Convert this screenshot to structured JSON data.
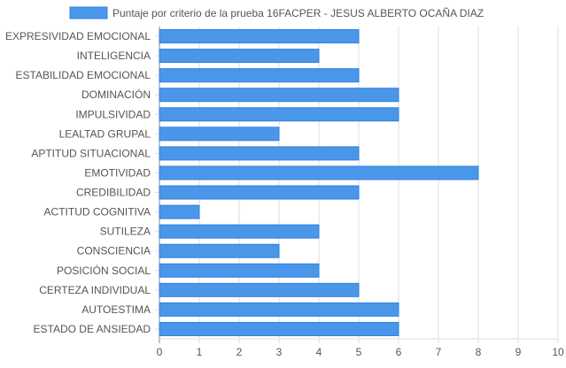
{
  "chart_data": {
    "type": "bar",
    "orientation": "horizontal",
    "legend_position": "top",
    "grid": true,
    "colors": {
      "bar_fill": "#4a97ea",
      "bar_stroke": "#2f7fe0",
      "grid": "#dddddd",
      "axis_text": "#555555"
    },
    "xlim": [
      0,
      10
    ],
    "x_ticks": [
      "0",
      "1",
      "2",
      "3",
      "4",
      "5",
      "6",
      "7",
      "8",
      "9",
      "10"
    ],
    "categories": [
      "EXPRESIVIDAD EMOCIONAL",
      "INTELIGENCIA",
      "ESTABILIDAD EMOCIONAL",
      "DOMINACIÓN",
      "IMPULSIVIDAD",
      "LEALTAD GRUPAL",
      "APTITUD SITUACIONAL",
      "EMOTIVIDAD",
      "CREDIBILIDAD",
      "ACTITUD COGNITIVA",
      "SUTILEZA",
      "CONSCIENCIA",
      "POSICIÓN SOCIAL",
      "CERTEZA INDIVIDUAL",
      "AUTOESTIMA",
      "ESTADO DE ANSIEDAD"
    ],
    "series": [
      {
        "name": "Puntaje por criterio de la prueba 16FACPER - JESUS ALBERTO OCAÑA DIAZ",
        "values": [
          5,
          4,
          5,
          6,
          6,
          3,
          5,
          8,
          5,
          1,
          4,
          3,
          4,
          5,
          6,
          6
        ]
      }
    ]
  }
}
